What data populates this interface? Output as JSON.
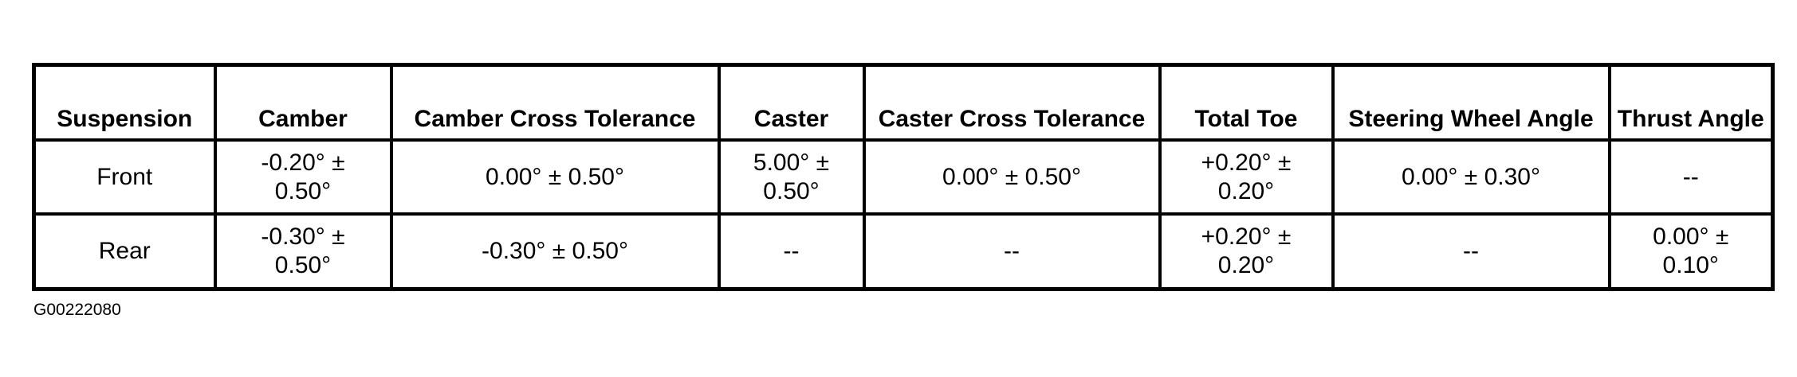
{
  "table": {
    "headers": [
      "Suspension",
      "Camber",
      "Camber Cross Tolerance",
      "Caster",
      "Caster Cross Tolerance",
      "Total Toe",
      "Steering Wheel Angle",
      "Thrust Angle"
    ],
    "rows": [
      [
        "Front",
        "-0.20° ± 0.50°",
        "0.00° ± 0.50°",
        "5.00° ± 0.50°",
        "0.00° ± 0.50°",
        "+0.20° ± 0.20°",
        "0.00° ± 0.30°",
        "--"
      ],
      [
        "Rear",
        "-0.30° ± 0.50°",
        "-0.30° ± 0.50°",
        "--",
        "--",
        "+0.20° ± 0.20°",
        "--",
        "0.00° ± 0.10°"
      ]
    ]
  },
  "figure_id": "G00222080"
}
